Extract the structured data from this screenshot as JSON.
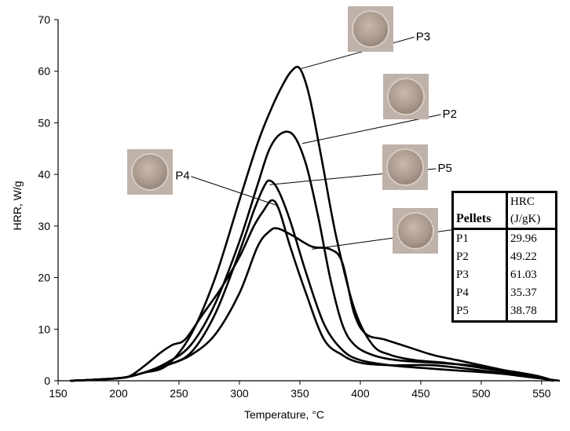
{
  "chart_data": {
    "type": "line",
    "xlabel": "Temperature, °C",
    "ylabel": "HRR, W/g",
    "xlim": [
      150,
      565
    ],
    "ylim": [
      0,
      70
    ],
    "x_ticks": [
      "150",
      "200",
      "250",
      "300",
      "350",
      "400",
      "450",
      "500",
      "550"
    ],
    "y_ticks": [
      "0",
      "10",
      "20",
      "30",
      "40",
      "50",
      "60",
      "70"
    ],
    "grid": false,
    "legend": "none",
    "series": [
      {
        "name": "P1",
        "points": [
          [
            160,
            0
          ],
          [
            200,
            0.5
          ],
          [
            220,
            1.5
          ],
          [
            240,
            3
          ],
          [
            260,
            5
          ],
          [
            280,
            9
          ],
          [
            300,
            17
          ],
          [
            315,
            26
          ],
          [
            325,
            29
          ],
          [
            332,
            29.5
          ],
          [
            345,
            28
          ],
          [
            360,
            26
          ],
          [
            375,
            25.5
          ],
          [
            385,
            23
          ],
          [
            395,
            13
          ],
          [
            405,
            9
          ],
          [
            420,
            8
          ],
          [
            440,
            6.5
          ],
          [
            460,
            5
          ],
          [
            480,
            4
          ],
          [
            500,
            3
          ],
          [
            520,
            2
          ],
          [
            540,
            1
          ],
          [
            560,
            0
          ]
        ]
      },
      {
        "name": "P2",
        "points": [
          [
            160,
            0
          ],
          [
            200,
            0.5
          ],
          [
            220,
            1.5
          ],
          [
            240,
            3.5
          ],
          [
            260,
            7
          ],
          [
            280,
            15
          ],
          [
            300,
            27
          ],
          [
            315,
            38
          ],
          [
            325,
            45
          ],
          [
            335,
            48
          ],
          [
            345,
            47.5
          ],
          [
            355,
            42
          ],
          [
            365,
            32
          ],
          [
            375,
            20
          ],
          [
            385,
            11
          ],
          [
            395,
            7
          ],
          [
            410,
            5
          ],
          [
            430,
            4
          ],
          [
            460,
            3.5
          ],
          [
            490,
            3
          ],
          [
            520,
            2
          ],
          [
            545,
            1
          ],
          [
            560,
            0
          ]
        ]
      },
      {
        "name": "P3",
        "points": [
          [
            160,
            0
          ],
          [
            200,
            0.5
          ],
          [
            220,
            1.5
          ],
          [
            240,
            3
          ],
          [
            260,
            9
          ],
          [
            280,
            20
          ],
          [
            300,
            35
          ],
          [
            315,
            46
          ],
          [
            325,
            52
          ],
          [
            335,
            57
          ],
          [
            343,
            60
          ],
          [
            350,
            60.5
          ],
          [
            358,
            55
          ],
          [
            368,
            43
          ],
          [
            380,
            28
          ],
          [
            395,
            14
          ],
          [
            410,
            7
          ],
          [
            425,
            5
          ],
          [
            445,
            4
          ],
          [
            470,
            3.5
          ],
          [
            500,
            2.5
          ],
          [
            525,
            1.5
          ],
          [
            545,
            1
          ],
          [
            560,
            0
          ]
        ]
      },
      {
        "name": "P4",
        "points": [
          [
            160,
            0
          ],
          [
            200,
            0.5
          ],
          [
            210,
            1
          ],
          [
            222,
            3
          ],
          [
            235,
            5.5
          ],
          [
            245,
            7
          ],
          [
            255,
            8
          ],
          [
            270,
            13
          ],
          [
            285,
            18
          ],
          [
            300,
            24
          ],
          [
            312,
            30
          ],
          [
            320,
            33
          ],
          [
            327,
            35
          ],
          [
            333,
            33
          ],
          [
            342,
            26
          ],
          [
            355,
            17
          ],
          [
            370,
            8
          ],
          [
            385,
            5
          ],
          [
            400,
            3.5
          ],
          [
            425,
            3
          ],
          [
            460,
            3
          ],
          [
            500,
            2
          ],
          [
            530,
            1
          ],
          [
            555,
            0.3
          ],
          [
            565,
            0
          ]
        ]
      },
      {
        "name": "P5",
        "points": [
          [
            160,
            0
          ],
          [
            200,
            0.5
          ],
          [
            220,
            1.5
          ],
          [
            240,
            3
          ],
          [
            260,
            5.5
          ],
          [
            280,
            13
          ],
          [
            300,
            25
          ],
          [
            312,
            33
          ],
          [
            320,
            37.5
          ],
          [
            325,
            38.8
          ],
          [
            332,
            37
          ],
          [
            342,
            31
          ],
          [
            355,
            21
          ],
          [
            370,
            11
          ],
          [
            385,
            6
          ],
          [
            400,
            4
          ],
          [
            425,
            3
          ],
          [
            450,
            2.5
          ],
          [
            480,
            2
          ],
          [
            510,
            1.5
          ],
          [
            540,
            0.8
          ],
          [
            560,
            0
          ]
        ]
      }
    ],
    "callouts": [
      {
        "label": "P1",
        "anchor": [
          360,
          25.5
        ],
        "text_at": [
          488,
          29
        ]
      },
      {
        "label": "P2",
        "anchor": [
          352,
          46
        ],
        "text_at": [
          468,
          51
        ]
      },
      {
        "label": "P3",
        "anchor": [
          351,
          60.5
        ],
        "text_at": [
          446,
          66
        ]
      },
      {
        "label": "P4",
        "anchor": [
          331,
          34
        ],
        "text_at": [
          247,
          39
        ]
      },
      {
        "label": "P5",
        "anchor": [
          325,
          38
        ],
        "text_at": [
          464,
          40.5
        ]
      }
    ]
  },
  "table": {
    "header_left": "Pellets",
    "header_right": "HRC (J/gK)",
    "rows": [
      {
        "pellet": "P1",
        "hrc": "29.96"
      },
      {
        "pellet": "P2",
        "hrc": "49.22"
      },
      {
        "pellet": "P3",
        "hrc": "61.03"
      },
      {
        "pellet": "P4",
        "hrc": "35.37"
      },
      {
        "pellet": "P5",
        "hrc": "38.78"
      }
    ]
  },
  "colors": {
    "line": "#000000",
    "photo_bg": "#bfb2aa",
    "pellet_face": "#a8988c"
  }
}
